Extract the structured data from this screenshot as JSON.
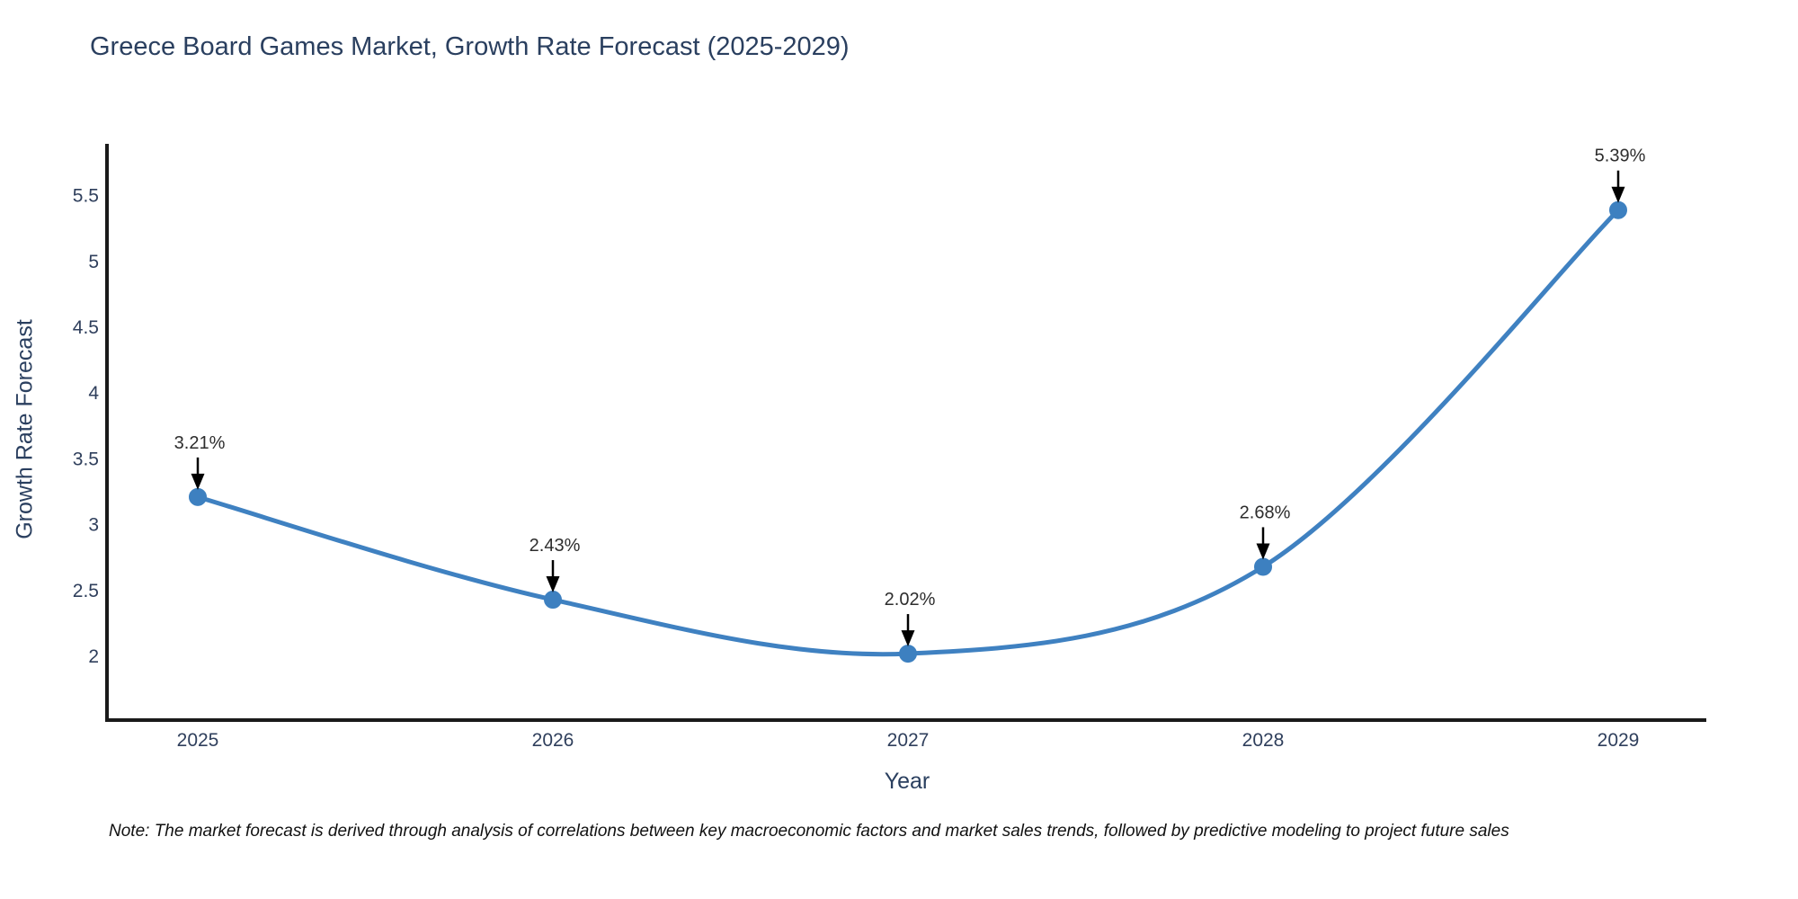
{
  "page": {
    "background": "#ffffff"
  },
  "chart_data": {
    "type": "line",
    "title": "Greece Board Games Market, Growth Rate Forecast (2025-2029)",
    "xlabel": "Year",
    "ylabel": "Growth Rate Forecast",
    "x": [
      2025,
      2026,
      2027,
      2028,
      2029
    ],
    "series": [
      {
        "name": "Growth Rate Forecast",
        "values": [
          3.21,
          2.43,
          2.02,
          2.68,
          5.39
        ]
      }
    ],
    "point_labels": [
      "3.21%",
      "2.43%",
      "2.02%",
      "2.68%",
      "5.39%"
    ],
    "x_tick_labels": [
      "2025",
      "2026",
      "2027",
      "2028",
      "2029"
    ],
    "y_tick_values": [
      2,
      2.5,
      3,
      3.5,
      4,
      4.5,
      5,
      5.5
    ],
    "ylim": [
      1.51,
      5.9
    ],
    "grid": false,
    "legend_position": "none",
    "line_shape": "spline",
    "colors": {
      "line": "#3f81c1",
      "marker": "#3d80c0",
      "axis": "#1a1a1a",
      "title_text": "#2a3f5f",
      "tick_text": "#2f3f5c",
      "annotation_arrow": "#000000"
    }
  },
  "note": {
    "text": "Note: The market forecast is derived through analysis of correlations between key macroeconomic factors and market sales trends, followed by predictive modeling to project future sales"
  }
}
